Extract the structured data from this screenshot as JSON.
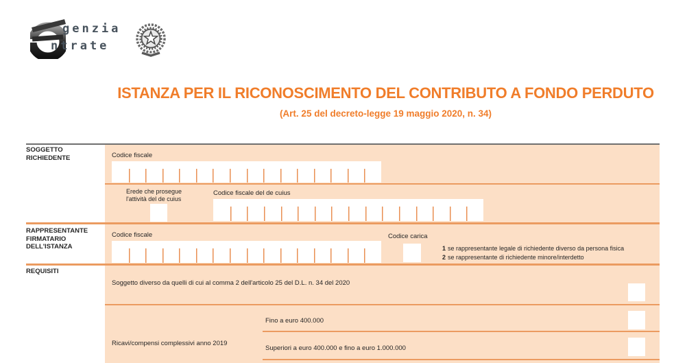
{
  "colors": {
    "accent": "#f07d2a",
    "panel": "#fcdfc6",
    "line": "#eb9b60",
    "tick": "#e98f52",
    "ink": "#262626",
    "rule-dark": "#6f6f6f",
    "logo-ink": "#47525c"
  },
  "logo": {
    "word_top": "genzia",
    "word_bottom": "ntrate"
  },
  "header": {
    "title": "ISTANZA PER IL RICONOSCIMENTO DEL CONTRIBUTO A FONDO PERDUTO",
    "subtitle": "(Art. 25 del decreto-legge 19 maggio 2020, n. 34)"
  },
  "soggetto": {
    "title_l1": "SOGGETTO",
    "title_l2": "RICHIEDENTE",
    "cf_label": "Codice fiscale",
    "cf_cells": 16,
    "erede_l1": "Erede che prosegue",
    "erede_l2": "l'attività del de cuius",
    "cf_decuius_label": "Codice fiscale del de cuius",
    "cf_decuius_cells": 16
  },
  "rappresentante": {
    "title_l1": "RAPPRESENTANTE",
    "title_l2": "FIRMATARIO",
    "title_l3": "DELL'ISTANZA",
    "cf_label": "Codice fiscale",
    "cf_cells": 16,
    "codice_carica_label": "Codice carica",
    "nota1_n": "1",
    "nota1": "se rappresentante legale di richiedente diverso da persona fisica",
    "nota2_n": "2",
    "nota2": "se rappresentante di richiedente minore/interdetto"
  },
  "requisiti": {
    "title": "REQUISITI",
    "soggetto_diverso": "Soggetto diverso da quelli di cui al comma 2 dell'articolo 25 del D.L. n. 34 del 2020",
    "ricavi_label": "Ricavi/compensi complessivi anno 2019",
    "opzione1": "Fino a euro 400.000",
    "opzione2": "Superiori a euro 400.000 e fino a euro 1.000.000"
  }
}
